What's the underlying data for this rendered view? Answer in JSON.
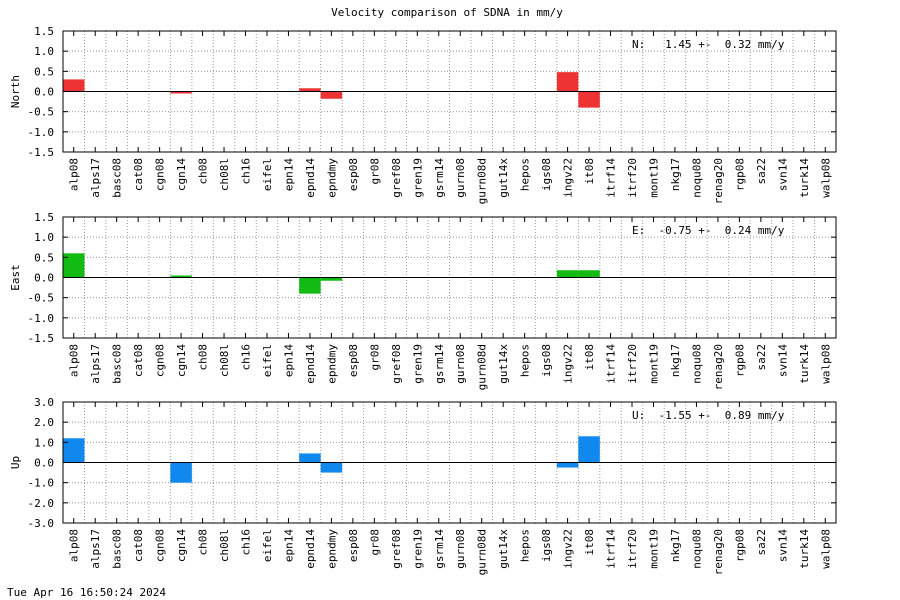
{
  "title": "Velocity comparison of SDNA in mm/y",
  "footer": "Tue Apr 16 16:50:24 2024",
  "chart_data": [
    {
      "type": "bar",
      "ylabel": "North",
      "ylim": [
        -1.5,
        1.5
      ],
      "yticks": [
        "1.5",
        "1.0",
        "0.5",
        "0.0",
        "-0.5",
        "-1.0",
        "-1.5"
      ],
      "grid": true,
      "color": "#ee3333",
      "annotation": "N:   1.45 +-  0.32 mm/y",
      "categories": [
        "alp08",
        "alps17",
        "basc08",
        "cat08",
        "cgn08",
        "cgn14",
        "ch08",
        "ch08l",
        "ch16",
        "eifel",
        "epn14",
        "epnd14",
        "epndmy",
        "esp08",
        "gr08",
        "gref08",
        "gren19",
        "gsrm14",
        "gurn08",
        "gurn08d",
        "gut14x",
        "hepos",
        "igs08",
        "ingv22",
        "it08",
        "itrf14",
        "itrf20",
        "mont19",
        "nkg17",
        "noqu08",
        "renag20",
        "rgp08",
        "sa22",
        "svn14",
        "turk14",
        "walp08"
      ],
      "values": [
        0.3,
        0,
        0,
        0,
        0,
        -0.05,
        0,
        0,
        0,
        0,
        0,
        0.08,
        -0.18,
        0,
        0,
        0,
        0,
        0,
        0,
        0,
        0,
        0,
        0,
        0.48,
        -0.4,
        0,
        0,
        0,
        0,
        0,
        0,
        0,
        0,
        0,
        0,
        0
      ]
    },
    {
      "type": "bar",
      "ylabel": "East",
      "ylim": [
        -1.5,
        1.5
      ],
      "yticks": [
        "1.5",
        "1.0",
        "0.5",
        "0.0",
        "-0.5",
        "-1.0",
        "-1.5"
      ],
      "grid": true,
      "color": "#11bb11",
      "annotation": "E:  -0.75 +-  0.24 mm/y",
      "categories": [
        "alp08",
        "alps17",
        "basc08",
        "cat08",
        "cgn08",
        "cgn14",
        "ch08",
        "ch08l",
        "ch16",
        "eifel",
        "epn14",
        "epnd14",
        "epndmy",
        "esp08",
        "gr08",
        "gref08",
        "gren19",
        "gsrm14",
        "gurn08",
        "gurn08d",
        "gut14x",
        "hepos",
        "igs08",
        "ingv22",
        "it08",
        "itrf14",
        "itrf20",
        "mont19",
        "nkg17",
        "noqu08",
        "renag20",
        "rgp08",
        "sa22",
        "svn14",
        "turk14",
        "walp08"
      ],
      "values": [
        0.6,
        0,
        0,
        0,
        0,
        0.05,
        0,
        0,
        0,
        0,
        0,
        -0.4,
        -0.08,
        0,
        0,
        0,
        0,
        0,
        0,
        0,
        0,
        0,
        0,
        0.18,
        0.18,
        0,
        0,
        0,
        0,
        0,
        0,
        0,
        0,
        0,
        0,
        0
      ]
    },
    {
      "type": "bar",
      "ylabel": "Up",
      "ylim": [
        -3.0,
        3.0
      ],
      "yticks": [
        "3.0",
        "2.0",
        "1.0",
        "0.0",
        "-1.0",
        "-2.0",
        "-3.0"
      ],
      "grid": true,
      "color": "#1188ee",
      "annotation": "U:  -1.55 +-  0.89 mm/y",
      "categories": [
        "alp08",
        "alps17",
        "basc08",
        "cat08",
        "cgn08",
        "cgn14",
        "ch08",
        "ch08l",
        "ch16",
        "eifel",
        "epn14",
        "epnd14",
        "epndmy",
        "esp08",
        "gr08",
        "gref08",
        "gren19",
        "gsrm14",
        "gurn08",
        "gurn08d",
        "gut14x",
        "hepos",
        "igs08",
        "ingv22",
        "it08",
        "itrf14",
        "itrf20",
        "mont19",
        "nkg17",
        "noqu08",
        "renag20",
        "rgp08",
        "sa22",
        "svn14",
        "turk14",
        "walp08"
      ],
      "values": [
        1.2,
        0,
        0,
        0,
        0,
        -1.0,
        0,
        0,
        0,
        0,
        0,
        0.45,
        -0.5,
        0,
        0,
        0,
        0,
        0,
        0,
        0,
        0,
        0,
        0,
        -0.25,
        1.3,
        0,
        0,
        0,
        0,
        0,
        0,
        0,
        0,
        0,
        0,
        0
      ]
    }
  ]
}
